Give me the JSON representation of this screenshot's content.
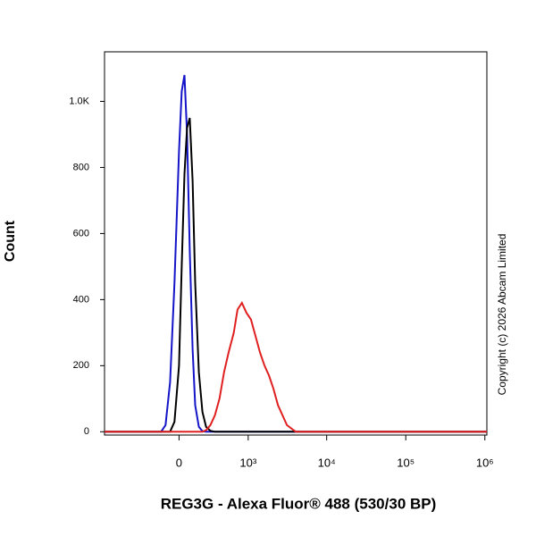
{
  "chart_data": {
    "type": "line",
    "xlabel": "REG3G - Alexa Fluor® 488 (530/30 BP)",
    "ylabel": "Count",
    "annotation": "Copyright (c) 2026 Abcam Limited",
    "xscale": "asinh",
    "xlim": [
      -1175,
      1060000
    ],
    "xticks": [
      0,
      {
        "value": 1000,
        "label": "10³"
      },
      {
        "value": 10000,
        "label": "10⁴"
      },
      {
        "value": 100000,
        "label": "10⁵"
      },
      {
        "value": 1000000,
        "label": "10⁶"
      }
    ],
    "ylim": [
      -10,
      1150
    ],
    "yticks": [
      0,
      200,
      400,
      600,
      800,
      {
        "value": 1000,
        "label": "1.0K"
      }
    ],
    "series": [
      {
        "color": "#1414c8",
        "x": [
          -1175,
          -149,
          -110,
          -72,
          -36,
          0,
          21,
          43,
          64,
          86,
          110,
          133,
          166,
          200,
          237,
          300,
          1000,
          1060000
        ],
        "values": [
          0,
          0,
          20,
          150,
          450,
          850,
          1030,
          1080,
          900,
          550,
          250,
          80,
          15,
          2,
          0,
          0,
          0,
          0
        ]
      },
      {
        "color": "#000000",
        "x": [
          -1175,
          -72,
          -36,
          0,
          21,
          43,
          64,
          86,
          110,
          133,
          166,
          200,
          237,
          284,
          339,
          1060000
        ],
        "values": [
          0,
          0,
          30,
          200,
          500,
          780,
          920,
          950,
          760,
          450,
          180,
          60,
          15,
          3,
          0,
          0
        ]
      },
      {
        "color": "#e02020",
        "x": [
          -1175,
          200,
          237,
          284,
          339,
          400,
          468,
          544,
          642,
          721,
          827,
          949,
          1085,
          1243,
          1422,
          1624,
          1855,
          2116,
          2415,
          3136,
          4053,
          1060000
        ],
        "values": [
          0,
          0,
          5,
          20,
          50,
          100,
          180,
          240,
          300,
          370,
          390,
          360,
          340,
          290,
          240,
          200,
          170,
          130,
          80,
          20,
          0,
          0
        ]
      }
    ]
  }
}
